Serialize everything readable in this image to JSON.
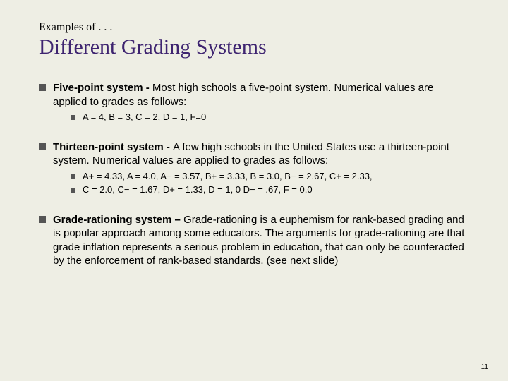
{
  "kicker": "Examples of . . .",
  "title": "Different Grading Systems",
  "sections": [
    {
      "lead": "Five-point system - ",
      "body": "Most high schools a five-point system.  Numerical values are applied to grades as follows:",
      "subs": [
        "A = 4, B = 3, C = 2, D = 1, F=0"
      ]
    },
    {
      "lead": "Thirteen-point system - ",
      "body": "A few high schools in the United States use a thirteen-point system. Numerical values are applied to grades as follows:",
      "subs": [
        "A+ = 4.33, A = 4.0,  A− = 3.57, B+ = 3.33, B = 3.0, B− = 2.67, C+ = 2.33,",
        "C = 2.0, C− = 1.67, D+ = 1.33, D = 1, 0 D− = .67, F = 0.0"
      ]
    },
    {
      "lead": "Grade-rationing system – ",
      "body": "Grade-rationing is a euphemism for rank-based grading and  is popular approach among some educators. The arguments for grade-rationing are that grade inflation represents a serious problem in education, that can only be counteracted by the enforcement of rank-based standards. (see next slide)",
      "subs": []
    }
  ],
  "pageNumber": "11",
  "colors": {
    "background": "#eeeee4",
    "titleColor": "#3e2470",
    "bullet": "#555"
  }
}
